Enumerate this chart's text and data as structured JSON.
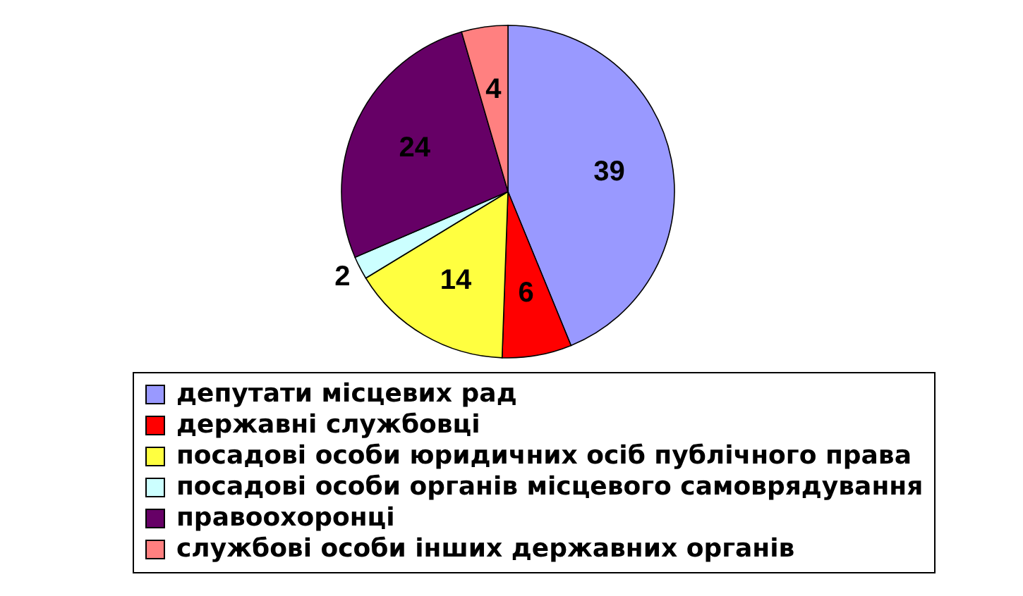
{
  "chart_data": {
    "type": "pie",
    "categories": [
      "депутати місцевих рад",
      "державні службовці",
      "посадові особи юридичних осіб публічного права",
      "посадові особи органів місцевого самоврядування",
      "правоохоронці",
      "службові особи інших державних органів"
    ],
    "values": [
      39,
      6,
      14,
      2,
      24,
      4
    ],
    "colors": [
      "#9999ff",
      "#ff0000",
      "#ffff40",
      "#ccffff",
      "#660066",
      "#ff8080"
    ],
    "data_labels": true,
    "legend": "bottom"
  }
}
